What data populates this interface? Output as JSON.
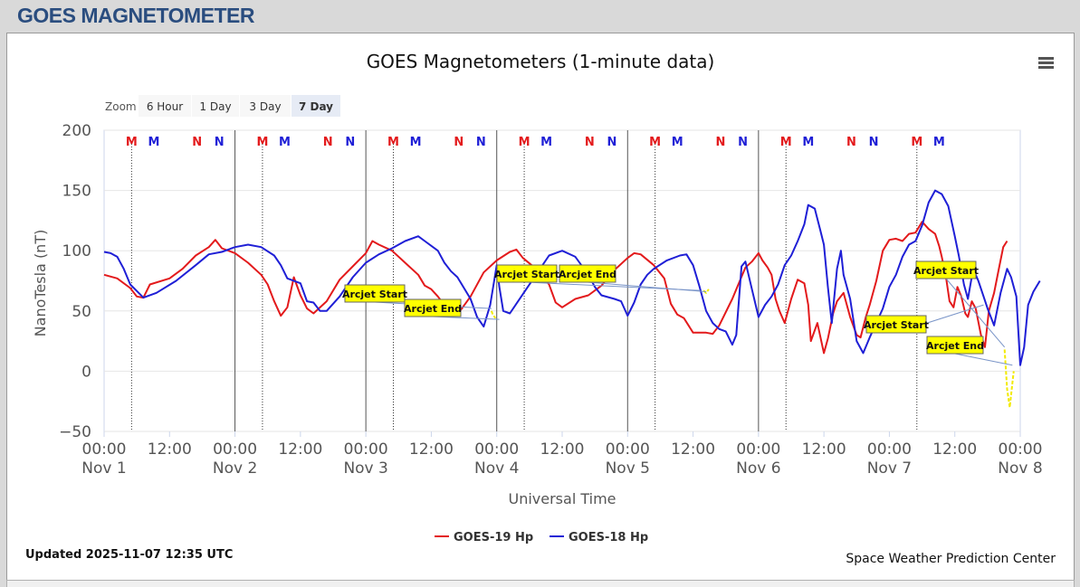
{
  "page": {
    "title": "GOES MAGNETOMETER"
  },
  "chart": {
    "menu_icon": "hamburger-menu-icon",
    "zoom": {
      "label": "Zoom",
      "options": [
        "6 Hour",
        "1 Day",
        "3 Day",
        "7 Day"
      ],
      "selected": "7 Day"
    },
    "updated": "Updated 2025-11-07 12:35 UTC",
    "credit": "Space Weather Prediction Center",
    "colors": {
      "goes19": "#e31a1c",
      "goes18": "#1f1fd6",
      "arcjet": "#f2ea00"
    }
  },
  "chart_data": {
    "type": "line",
    "title": "GOES Magnetometers (1-minute data)",
    "xlabel": "Universal Time",
    "ylabel": "NanoTesla (nT)",
    "ylim": [
      -50,
      200
    ],
    "yticks": [
      "200",
      "150",
      "100",
      "50",
      "0",
      "−50"
    ],
    "xlim": [
      "2025-11-01 00:00",
      "2025-11-08 00:00"
    ],
    "xticks": [
      {
        "time": "00:00",
        "date": "Nov 1"
      },
      {
        "time": "12:00",
        "date": ""
      },
      {
        "time": "00:00",
        "date": "Nov 2"
      },
      {
        "time": "12:00",
        "date": ""
      },
      {
        "time": "00:00",
        "date": "Nov 3"
      },
      {
        "time": "12:00",
        "date": ""
      },
      {
        "time": "00:00",
        "date": "Nov 4"
      },
      {
        "time": "12:00",
        "date": ""
      },
      {
        "time": "00:00",
        "date": "Nov 5"
      },
      {
        "time": "12:00",
        "date": ""
      },
      {
        "time": "00:00",
        "date": "Nov 6"
      },
      {
        "time": "12:00",
        "date": ""
      },
      {
        "time": "00:00",
        "date": "Nov 7"
      },
      {
        "time": "12:00",
        "date": ""
      },
      {
        "time": "00:00",
        "date": "Nov 8"
      }
    ],
    "grid": true,
    "legend_position": "bottom-center",
    "series": [
      {
        "name": "GOES-19 Hp",
        "color": "#e31a1c",
        "points": [
          [
            0.0,
            80
          ],
          [
            0.1,
            77
          ],
          [
            0.2,
            69
          ],
          [
            0.25,
            62
          ],
          [
            0.3,
            61
          ],
          [
            0.35,
            72
          ],
          [
            0.5,
            77
          ],
          [
            0.6,
            85
          ],
          [
            0.7,
            96
          ],
          [
            0.8,
            103
          ],
          [
            0.85,
            109
          ],
          [
            0.9,
            102
          ],
          [
            1.0,
            98
          ],
          [
            1.1,
            90
          ],
          [
            1.2,
            80
          ],
          [
            1.25,
            72
          ],
          [
            1.3,
            58
          ],
          [
            1.35,
            46
          ],
          [
            1.4,
            53
          ],
          [
            1.45,
            78
          ],
          [
            1.5,
            63
          ],
          [
            1.55,
            52
          ],
          [
            1.6,
            48
          ],
          [
            1.7,
            58
          ],
          [
            1.8,
            76
          ],
          [
            1.9,
            87
          ],
          [
            2.0,
            98
          ],
          [
            2.05,
            108
          ],
          [
            2.1,
            105
          ],
          [
            2.2,
            100
          ],
          [
            2.3,
            90
          ],
          [
            2.4,
            80
          ],
          [
            2.45,
            71
          ],
          [
            2.5,
            68
          ],
          [
            2.55,
            62
          ],
          [
            2.6,
            55
          ],
          [
            2.65,
            50
          ],
          [
            2.7,
            47
          ],
          [
            2.8,
            62
          ],
          [
            2.9,
            82
          ],
          [
            3.0,
            92
          ],
          [
            3.1,
            99
          ],
          [
            3.15,
            101
          ],
          [
            3.2,
            94
          ],
          [
            3.3,
            85
          ],
          [
            3.4,
            72
          ],
          [
            3.45,
            57
          ],
          [
            3.5,
            53
          ],
          [
            3.6,
            60
          ],
          [
            3.7,
            63
          ],
          [
            3.8,
            71
          ],
          [
            3.9,
            84
          ],
          [
            4.0,
            94
          ],
          [
            4.05,
            98
          ],
          [
            4.1,
            97
          ],
          [
            4.2,
            88
          ],
          [
            4.28,
            77
          ],
          [
            4.33,
            56
          ],
          [
            4.38,
            47
          ],
          [
            4.43,
            44
          ],
          [
            4.5,
            32
          ],
          [
            4.6,
            32
          ],
          [
            4.65,
            31
          ],
          [
            4.7,
            38
          ],
          [
            4.8,
            60
          ],
          [
            4.9,
            86
          ],
          [
            4.95,
            91
          ],
          [
            5.0,
            98
          ],
          [
            5.03,
            92
          ],
          [
            5.07,
            86
          ],
          [
            5.1,
            80
          ],
          [
            5.13,
            60
          ],
          [
            5.16,
            50
          ],
          [
            5.2,
            40
          ],
          [
            5.25,
            60
          ],
          [
            5.3,
            76
          ],
          [
            5.35,
            73
          ],
          [
            5.38,
            55
          ],
          [
            5.4,
            25
          ],
          [
            5.45,
            40
          ],
          [
            5.5,
            15
          ],
          [
            5.53,
            27
          ],
          [
            5.57,
            48
          ],
          [
            5.6,
            58
          ],
          [
            5.65,
            65
          ],
          [
            5.7,
            45
          ],
          [
            5.75,
            30
          ],
          [
            5.78,
            28
          ],
          [
            5.82,
            45
          ],
          [
            5.85,
            55
          ],
          [
            5.9,
            75
          ],
          [
            5.95,
            100
          ],
          [
            6.0,
            109
          ],
          [
            6.05,
            110
          ],
          [
            6.1,
            108
          ],
          [
            6.15,
            114
          ],
          [
            6.2,
            115
          ],
          [
            6.25,
            124
          ],
          [
            6.3,
            118
          ],
          [
            6.35,
            114
          ],
          [
            6.38,
            104
          ],
          [
            6.4,
            95
          ],
          [
            6.43,
            80
          ],
          [
            6.46,
            58
          ],
          [
            6.49,
            53
          ],
          [
            6.52,
            70
          ],
          [
            6.55,
            62
          ],
          [
            6.58,
            48
          ],
          [
            6.6,
            45
          ],
          [
            6.63,
            58
          ],
          [
            6.66,
            52
          ],
          [
            6.7,
            30
          ],
          [
            6.73,
            20
          ],
          [
            6.76,
            50
          ],
          [
            6.8,
            65
          ],
          [
            6.84,
            87
          ],
          [
            6.87,
            103
          ],
          [
            6.9,
            108
          ]
        ]
      },
      {
        "name": "GOES-18 Hp",
        "color": "#1f1fd6",
        "points": [
          [
            0.0,
            99
          ],
          [
            0.05,
            98
          ],
          [
            0.1,
            95
          ],
          [
            0.15,
            85
          ],
          [
            0.2,
            72
          ],
          [
            0.3,
            61
          ],
          [
            0.4,
            65
          ],
          [
            0.55,
            75
          ],
          [
            0.7,
            88
          ],
          [
            0.8,
            97
          ],
          [
            0.9,
            99
          ],
          [
            1.0,
            103
          ],
          [
            1.1,
            105
          ],
          [
            1.2,
            103
          ],
          [
            1.3,
            96
          ],
          [
            1.35,
            88
          ],
          [
            1.4,
            77
          ],
          [
            1.5,
            73
          ],
          [
            1.55,
            58
          ],
          [
            1.6,
            57
          ],
          [
            1.65,
            50
          ],
          [
            1.7,
            50
          ],
          [
            1.8,
            62
          ],
          [
            1.9,
            78
          ],
          [
            2.0,
            90
          ],
          [
            2.1,
            97
          ],
          [
            2.2,
            102
          ],
          [
            2.3,
            108
          ],
          [
            2.4,
            112
          ],
          [
            2.45,
            108
          ],
          [
            2.55,
            100
          ],
          [
            2.6,
            90
          ],
          [
            2.65,
            83
          ],
          [
            2.7,
            78
          ],
          [
            2.8,
            60
          ],
          [
            2.85,
            45
          ],
          [
            2.9,
            37
          ],
          [
            2.95,
            55
          ],
          [
            3.0,
            88
          ],
          [
            3.02,
            70
          ],
          [
            3.05,
            50
          ],
          [
            3.1,
            48
          ],
          [
            3.2,
            64
          ],
          [
            3.3,
            80
          ],
          [
            3.4,
            96
          ],
          [
            3.5,
            100
          ],
          [
            3.6,
            95
          ],
          [
            3.7,
            80
          ],
          [
            3.75,
            70
          ],
          [
            3.8,
            63
          ],
          [
            3.9,
            60
          ],
          [
            3.95,
            58
          ],
          [
            4.0,
            46
          ],
          [
            4.05,
            57
          ],
          [
            4.1,
            72
          ],
          [
            4.15,
            80
          ],
          [
            4.2,
            85
          ],
          [
            4.3,
            92
          ],
          [
            4.4,
            96
          ],
          [
            4.45,
            97
          ],
          [
            4.5,
            88
          ],
          [
            4.55,
            70
          ],
          [
            4.6,
            50
          ],
          [
            4.65,
            40
          ],
          [
            4.7,
            35
          ],
          [
            4.75,
            33
          ],
          [
            4.8,
            22
          ],
          [
            4.83,
            30
          ],
          [
            4.87,
            87
          ],
          [
            4.9,
            91
          ],
          [
            4.95,
            68
          ],
          [
            5.0,
            45
          ],
          [
            5.05,
            55
          ],
          [
            5.1,
            62
          ],
          [
            5.15,
            72
          ],
          [
            5.2,
            88
          ],
          [
            5.25,
            96
          ],
          [
            5.3,
            108
          ],
          [
            5.35,
            122
          ],
          [
            5.38,
            138
          ],
          [
            5.43,
            135
          ],
          [
            5.47,
            118
          ],
          [
            5.5,
            105
          ],
          [
            5.53,
            70
          ],
          [
            5.56,
            40
          ],
          [
            5.6,
            85
          ],
          [
            5.63,
            100
          ],
          [
            5.65,
            80
          ],
          [
            5.7,
            60
          ],
          [
            5.75,
            25
          ],
          [
            5.8,
            15
          ],
          [
            5.85,
            28
          ],
          [
            5.9,
            40
          ],
          [
            5.95,
            52
          ],
          [
            6.0,
            70
          ],
          [
            6.05,
            80
          ],
          [
            6.1,
            95
          ],
          [
            6.15,
            105
          ],
          [
            6.2,
            108
          ],
          [
            6.25,
            121
          ],
          [
            6.3,
            140
          ],
          [
            6.35,
            150
          ],
          [
            6.4,
            147
          ],
          [
            6.45,
            137
          ],
          [
            6.5,
            112
          ],
          [
            6.53,
            96
          ],
          [
            6.57,
            72
          ],
          [
            6.6,
            60
          ],
          [
            6.64,
            85
          ],
          [
            6.68,
            75
          ],
          [
            6.72,
            62
          ],
          [
            6.75,
            52
          ],
          [
            6.8,
            38
          ],
          [
            6.85,
            65
          ],
          [
            6.9,
            85
          ],
          [
            6.93,
            78
          ],
          [
            6.97,
            62
          ],
          [
            7.0,
            5
          ],
          [
            7.03,
            20
          ],
          [
            7.06,
            55
          ],
          [
            7.1,
            66
          ],
          [
            7.15,
            75
          ]
        ]
      }
    ],
    "arcjet_series": [
      {
        "points": [
          [
            2.96,
            50
          ],
          [
            2.97,
            47
          ],
          [
            2.99,
            44
          ]
        ]
      },
      {
        "points": [
          [
            4.58,
            67
          ],
          [
            4.6,
            65
          ],
          [
            4.62,
            68
          ]
        ]
      },
      {
        "points": [
          [
            6.88,
            18
          ],
          [
            6.9,
            -15
          ],
          [
            6.92,
            -30
          ],
          [
            6.94,
            -10
          ],
          [
            6.95,
            0
          ]
        ]
      }
    ],
    "annotations": [
      {
        "label": "Arcjet Start",
        "target": [
          2.96,
          52
        ]
      },
      {
        "label": "Arcjet End",
        "target": [
          3.02,
          43
        ]
      },
      {
        "label": "Arcjet Start",
        "target": [
          4.55,
          67
        ]
      },
      {
        "label": "Arcjet End",
        "target": [
          4.6,
          66
        ]
      },
      {
        "label": "Arcjet Start",
        "target": [
          6.72,
          55
        ]
      },
      {
        "label": "Arcjet Start",
        "target": [
          6.88,
          20
        ]
      },
      {
        "label": "Arcjet End",
        "target": [
          6.94,
          5
        ]
      }
    ],
    "markers": [
      {
        "label": "M",
        "day": 0.21,
        "color": "#e31a1c"
      },
      {
        "label": "M",
        "day": 0.38,
        "color": "#1f1fd6"
      },
      {
        "label": "N",
        "day": 0.71,
        "color": "#e31a1c"
      },
      {
        "label": "N",
        "day": 0.88,
        "color": "#1f1fd6"
      },
      {
        "label": "M",
        "day": 1.21,
        "color": "#e31a1c"
      },
      {
        "label": "M",
        "day": 1.38,
        "color": "#1f1fd6"
      },
      {
        "label": "N",
        "day": 1.71,
        "color": "#e31a1c"
      },
      {
        "label": "N",
        "day": 1.88,
        "color": "#1f1fd6"
      },
      {
        "label": "M",
        "day": 2.21,
        "color": "#e31a1c"
      },
      {
        "label": "M",
        "day": 2.38,
        "color": "#1f1fd6"
      },
      {
        "label": "N",
        "day": 2.71,
        "color": "#e31a1c"
      },
      {
        "label": "N",
        "day": 2.88,
        "color": "#1f1fd6"
      },
      {
        "label": "M",
        "day": 3.21,
        "color": "#e31a1c"
      },
      {
        "label": "M",
        "day": 3.38,
        "color": "#1f1fd6"
      },
      {
        "label": "N",
        "day": 3.71,
        "color": "#e31a1c"
      },
      {
        "label": "N",
        "day": 3.88,
        "color": "#1f1fd6"
      },
      {
        "label": "M",
        "day": 4.21,
        "color": "#e31a1c"
      },
      {
        "label": "M",
        "day": 4.38,
        "color": "#1f1fd6"
      },
      {
        "label": "N",
        "day": 4.71,
        "color": "#e31a1c"
      },
      {
        "label": "N",
        "day": 4.88,
        "color": "#1f1fd6"
      },
      {
        "label": "M",
        "day": 5.21,
        "color": "#e31a1c"
      },
      {
        "label": "M",
        "day": 5.38,
        "color": "#1f1fd6"
      },
      {
        "label": "N",
        "day": 5.71,
        "color": "#e31a1c"
      },
      {
        "label": "N",
        "day": 5.88,
        "color": "#1f1fd6"
      },
      {
        "label": "M",
        "day": 6.21,
        "color": "#e31a1c"
      },
      {
        "label": "M",
        "day": 6.38,
        "color": "#1f1fd6"
      }
    ],
    "noon_dotted_days": [
      0.21,
      1.21,
      2.21,
      3.21,
      4.21,
      5.21,
      6.21
    ],
    "day_lines": [
      1,
      2,
      3,
      4,
      5
    ]
  }
}
